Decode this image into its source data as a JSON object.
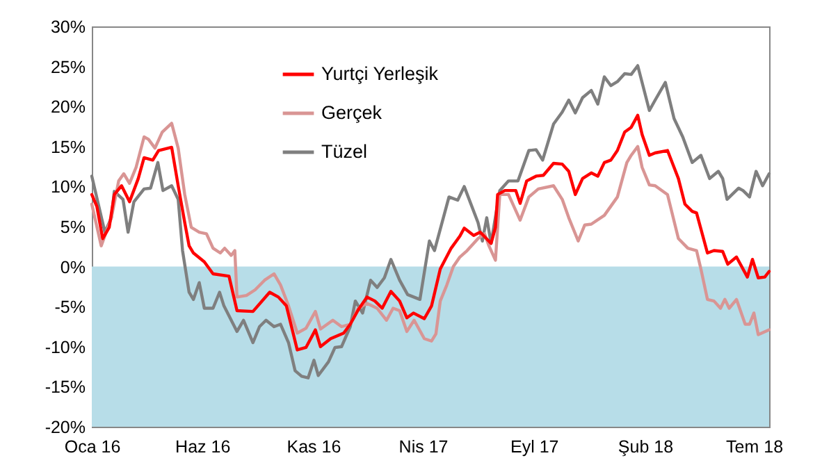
{
  "chart_data": {
    "type": "line",
    "xlim": [
      "2016-01-01",
      "2018-07-22"
    ],
    "xticks": [
      {
        "value": "2016-01-01",
        "label": "Oca 16"
      },
      {
        "value": "2016-06-01",
        "label": "Haz 16"
      },
      {
        "value": "2016-11-01",
        "label": "Kas 16"
      },
      {
        "value": "2017-04-01",
        "label": "Nis 17"
      },
      {
        "value": "2017-09-01",
        "label": "Eyl 17"
      },
      {
        "value": "2018-02-01",
        "label": "Şub 18"
      },
      {
        "value": "2018-07-01",
        "label": "Tem 18"
      }
    ],
    "ylim": [
      -20,
      30
    ],
    "yticks": [
      {
        "value": -20,
        "label": "-20%"
      },
      {
        "value": -15,
        "label": "-15%"
      },
      {
        "value": -10,
        "label": "-10%"
      },
      {
        "value": -5,
        "label": "-5%"
      },
      {
        "value": 0,
        "label": "0%"
      },
      {
        "value": 5,
        "label": "5%"
      },
      {
        "value": 10,
        "label": "10%"
      },
      {
        "value": 15,
        "label": "15%"
      },
      {
        "value": 20,
        "label": "20%"
      },
      {
        "value": 25,
        "label": "25%"
      },
      {
        "value": 30,
        "label": "30%"
      }
    ],
    "grid": false,
    "legend": "top left",
    "line_style": "solid",
    "marker": "none",
    "bands": [
      {
        "axis": "y",
        "from": -20,
        "to": 0,
        "color": "#b7dde8"
      }
    ],
    "series": [
      {
        "name": "Yurtçi Yerleşik",
        "color": "#ff0000",
        "x": [
          "2016-01-01",
          "2016-01-08",
          "2016-01-16",
          "2016-01-25",
          "2016-02-01",
          "2016-02-11",
          "2016-02-22",
          "2016-03-05",
          "2016-03-13",
          "2016-03-25",
          "2016-04-02",
          "2016-04-20",
          "2016-04-29",
          "2016-05-08",
          "2016-05-14",
          "2016-05-20",
          "2016-06-04",
          "2016-06-16",
          "2016-07-08",
          "2016-07-19",
          "2016-08-10",
          "2016-09-02",
          "2016-09-14",
          "2016-09-25",
          "2016-10-10",
          "2016-10-22",
          "2016-11-04",
          "2016-11-11",
          "2016-11-25",
          "2016-12-13",
          "2016-12-22",
          "2017-01-02",
          "2017-01-14",
          "2017-01-25",
          "2017-02-04",
          "2017-02-16",
          "2017-02-28",
          "2017-03-10",
          "2017-03-19",
          "2017-04-03",
          "2017-04-13",
          "2017-04-25",
          "2017-05-10",
          "2017-05-22",
          "2017-05-28",
          "2017-06-10",
          "2017-06-19",
          "2017-07-04",
          "2017-07-10",
          "2017-07-13",
          "2017-07-23",
          "2017-08-07",
          "2017-08-13",
          "2017-08-22",
          "2017-09-04",
          "2017-09-14",
          "2017-09-28",
          "2017-10-10",
          "2017-10-19",
          "2017-10-28",
          "2017-11-07",
          "2017-11-19",
          "2017-11-28",
          "2017-12-07",
          "2017-12-16",
          "2017-12-25",
          "2018-01-04",
          "2018-01-13",
          "2018-01-22",
          "2018-01-28",
          "2018-02-07",
          "2018-02-15",
          "2018-03-04",
          "2018-03-19",
          "2018-03-28",
          "2018-04-07",
          "2018-04-13",
          "2018-04-28",
          "2018-05-07",
          "2018-05-19",
          "2018-05-26",
          "2018-06-07",
          "2018-06-22",
          "2018-06-29",
          "2018-07-07",
          "2018-07-16",
          "2018-07-22"
        ],
        "values": [
          9.0,
          7.5,
          3.5,
          4.9,
          9.0,
          10.1,
          8.1,
          11.0,
          13.6,
          13.3,
          14.5,
          14.9,
          10.1,
          5.5,
          2.6,
          1.7,
          0.6,
          -0.9,
          -1.2,
          -5.5,
          -5.6,
          -3.2,
          -3.8,
          -4.9,
          -10.4,
          -10.1,
          -7.9,
          -10.0,
          -9.0,
          -8.3,
          -7.2,
          -5.4,
          -3.8,
          -4.3,
          -5.2,
          -3.1,
          -4.3,
          -6.4,
          -5.8,
          -6.5,
          -4.9,
          -0.3,
          2.3,
          3.8,
          4.8,
          3.9,
          4.3,
          2.9,
          4.9,
          9.0,
          9.5,
          9.5,
          7.9,
          10.7,
          11.3,
          11.4,
          12.9,
          12.8,
          11.9,
          9.0,
          11.0,
          11.7,
          11.3,
          13.0,
          13.3,
          14.5,
          16.8,
          17.4,
          18.9,
          16.5,
          13.9,
          14.2,
          14.5,
          11.0,
          7.8,
          6.9,
          6.7,
          1.7,
          2.0,
          1.9,
          0.3,
          1.2,
          -1.3,
          0.9,
          -1.4,
          -1.3,
          -0.6
        ]
      },
      {
        "name": "Gerçek",
        "color": "#d99594",
        "x": [
          "2016-01-01",
          "2016-01-14",
          "2016-01-28",
          "2016-02-07",
          "2016-02-14",
          "2016-02-22",
          "2016-03-02",
          "2016-03-13",
          "2016-03-19",
          "2016-03-28",
          "2016-04-07",
          "2016-04-20",
          "2016-04-29",
          "2016-05-08",
          "2016-05-17",
          "2016-05-28",
          "2016-06-07",
          "2016-06-16",
          "2016-06-26",
          "2016-07-02",
          "2016-07-11",
          "2016-07-16",
          "2016-07-19",
          "2016-08-01",
          "2016-08-13",
          "2016-08-26",
          "2016-09-08",
          "2016-09-17",
          "2016-09-28",
          "2016-10-10",
          "2016-10-22",
          "2016-11-04",
          "2016-11-11",
          "2016-11-28",
          "2016-12-10",
          "2016-12-22",
          "2017-01-02",
          "2017-01-14",
          "2017-01-28",
          "2017-02-10",
          "2017-02-19",
          "2017-02-28",
          "2017-03-10",
          "2017-03-20",
          "2017-04-03",
          "2017-04-13",
          "2017-04-19",
          "2017-04-25",
          "2017-05-04",
          "2017-05-13",
          "2017-05-22",
          "2017-06-01",
          "2017-06-16",
          "2017-06-25",
          "2017-07-01",
          "2017-07-10",
          "2017-07-16",
          "2017-07-28",
          "2017-08-13",
          "2017-08-25",
          "2017-09-07",
          "2017-09-28",
          "2017-10-10",
          "2017-10-19",
          "2017-11-01",
          "2017-11-10",
          "2017-11-19",
          "2017-12-07",
          "2017-12-25",
          "2018-01-07",
          "2018-01-13",
          "2018-01-22",
          "2018-01-28",
          "2018-02-07",
          "2018-02-15",
          "2018-03-04",
          "2018-03-19",
          "2018-04-01",
          "2018-04-13",
          "2018-04-19",
          "2018-04-28",
          "2018-05-07",
          "2018-05-16",
          "2018-05-22",
          "2018-05-28",
          "2018-06-07",
          "2018-06-19",
          "2018-06-25",
          "2018-07-01",
          "2018-07-07",
          "2018-07-22"
        ],
        "values": [
          7.8,
          2.6,
          6.1,
          10.7,
          11.6,
          10.4,
          12.4,
          16.2,
          15.9,
          14.8,
          16.8,
          17.9,
          14.8,
          9.0,
          4.9,
          4.3,
          4.1,
          2.3,
          1.7,
          2.3,
          1.4,
          2.0,
          -3.8,
          -3.6,
          -2.9,
          -1.7,
          -0.9,
          -2.3,
          -4.9,
          -8.3,
          -7.7,
          -5.6,
          -7.8,
          -6.7,
          -7.5,
          -7.2,
          -5.2,
          -4.6,
          -5.2,
          -6.7,
          -5.2,
          -5.5,
          -8.1,
          -6.7,
          -9.0,
          -9.3,
          -8.4,
          -4.3,
          -2.3,
          0,
          1.2,
          2.0,
          3.5,
          4.1,
          2.6,
          0.8,
          9.0,
          9.0,
          5.8,
          8.7,
          9.7,
          10.1,
          8.4,
          6.1,
          3.2,
          5.2,
          5.3,
          6.4,
          8.7,
          13.0,
          13.9,
          15.0,
          12.4,
          10.2,
          10.1,
          9.0,
          3.5,
          2.3,
          2.0,
          -0.3,
          -4.1,
          -4.3,
          -5.2,
          -4.1,
          -5.2,
          -4.1,
          -7.2,
          -7.2,
          -5.8,
          -8.5,
          -7.9
        ]
      },
      {
        "name": "Tüzel",
        "color": "#7f7f7f",
        "x": [
          "2016-01-01",
          "2016-01-10",
          "2016-01-19",
          "2016-01-28",
          "2016-02-01",
          "2016-02-13",
          "2016-02-20",
          "2016-02-28",
          "2016-03-13",
          "2016-03-22",
          "2016-04-01",
          "2016-04-08",
          "2016-04-20",
          "2016-04-29",
          "2016-05-05",
          "2016-05-14",
          "2016-05-20",
          "2016-05-28",
          "2016-06-04",
          "2016-06-16",
          "2016-06-25",
          "2016-07-01",
          "2016-07-19",
          "2016-07-28",
          "2016-08-10",
          "2016-08-19",
          "2016-08-28",
          "2016-09-08",
          "2016-09-17",
          "2016-09-28",
          "2016-10-07",
          "2016-10-16",
          "2016-10-25",
          "2016-11-02",
          "2016-11-08",
          "2016-11-22",
          "2016-12-01",
          "2016-12-10",
          "2016-12-22",
          "2016-12-29",
          "2017-01-08",
          "2017-01-19",
          "2017-01-28",
          "2017-02-07",
          "2017-02-16",
          "2017-02-28",
          "2017-03-11",
          "2017-03-28",
          "2017-04-10",
          "2017-04-17",
          "2017-05-07",
          "2017-05-19",
          "2017-05-28",
          "2017-06-16",
          "2017-06-22",
          "2017-06-28",
          "2017-07-04",
          "2017-07-16",
          "2017-07-28",
          "2017-08-10",
          "2017-08-25",
          "2017-09-04",
          "2017-09-13",
          "2017-09-28",
          "2017-10-10",
          "2017-10-19",
          "2017-10-28",
          "2017-11-07",
          "2017-11-19",
          "2017-11-28",
          "2017-12-07",
          "2017-12-16",
          "2017-12-25",
          "2018-01-04",
          "2018-01-13",
          "2018-01-22",
          "2018-02-07",
          "2018-02-15",
          "2018-03-01",
          "2018-03-13",
          "2018-03-25",
          "2018-04-07",
          "2018-04-19",
          "2018-05-01",
          "2018-05-13",
          "2018-05-19",
          "2018-05-25",
          "2018-06-10",
          "2018-06-16",
          "2018-06-25",
          "2018-07-04",
          "2018-07-13",
          "2018-07-22"
        ],
        "values": [
          11.3,
          7.8,
          4.3,
          6.1,
          9.4,
          8.4,
          4.3,
          8.1,
          9.7,
          9.8,
          13.0,
          9.5,
          10.1,
          8.4,
          2.0,
          -3.2,
          -4.1,
          -2.0,
          -5.2,
          -5.2,
          -3.2,
          -4.9,
          -8.1,
          -6.7,
          -9.5,
          -7.5,
          -6.7,
          -7.5,
          -7.2,
          -9.5,
          -13.0,
          -13.7,
          -13.9,
          -11.7,
          -13.6,
          -11.9,
          -10.1,
          -10.0,
          -7.5,
          -4.3,
          -5.8,
          -1.7,
          -2.6,
          -1.4,
          0.9,
          -1.7,
          -3.5,
          -4.1,
          3.2,
          2.0,
          8.7,
          8.3,
          10.0,
          5.5,
          3.2,
          6.1,
          2.9,
          9.5,
          10.7,
          10.7,
          14.5,
          14.6,
          13.3,
          17.8,
          19.3,
          20.8,
          19.2,
          21.1,
          22.0,
          20.3,
          23.7,
          22.6,
          23.1,
          24.1,
          24.0,
          25.1,
          19.5,
          20.8,
          23.0,
          18.5,
          16.2,
          13.0,
          13.9,
          11.0,
          11.9,
          11.0,
          8.4,
          9.8,
          9.5,
          8.7,
          11.9,
          10.1,
          11.6
        ]
      }
    ]
  }
}
